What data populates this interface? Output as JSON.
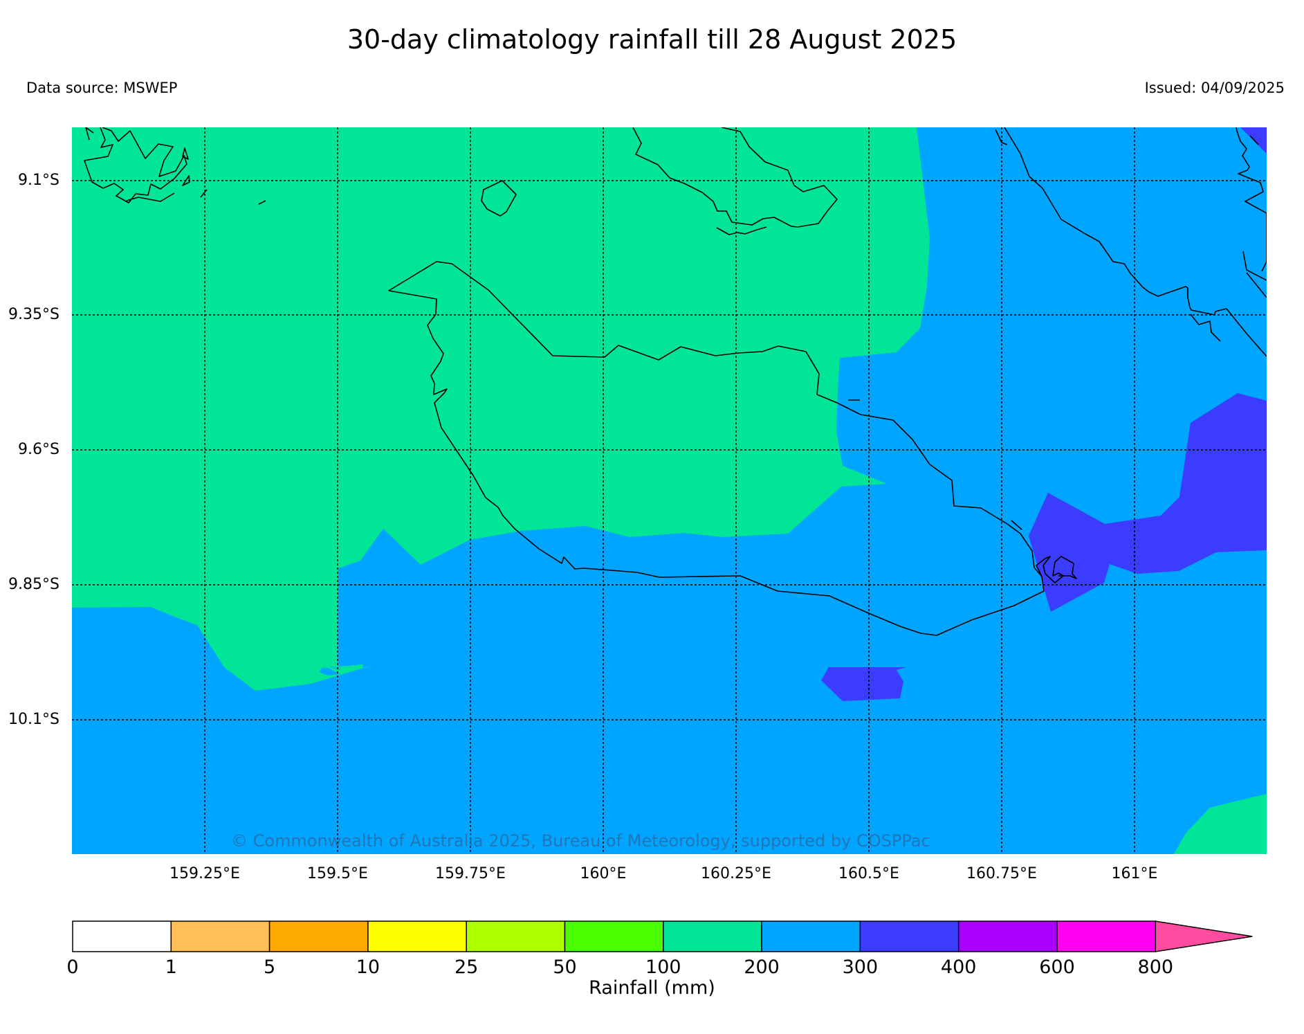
{
  "title": "30-day climatology rainfall till 28 August 2025",
  "data_source": "Data source: MSWEP",
  "issued": "Issued: 04/09/2025",
  "copyright": "© Commonwealth of Australia 2025, Bureau of Meteorology, supported by COSPPac",
  "lat_ticks": [
    "9.1°S",
    "9.35°S",
    "9.6°S",
    "9.85°S",
    "10.1°S"
  ],
  "lon_ticks": [
    "159.25°E",
    "159.5°E",
    "159.75°E",
    "160°E",
    "160.25°E",
    "160.5°E",
    "160.75°E",
    "161°E"
  ],
  "colorbar": {
    "title": "Rainfall (mm)",
    "ticks": [
      "0",
      "1",
      "5",
      "10",
      "25",
      "50",
      "100",
      "200",
      "300",
      "400",
      "600",
      "800"
    ],
    "colors": [
      "#ffffff",
      "#ffbf56",
      "#ffaa00",
      "#ffff00",
      "#b0ff00",
      "#4cff00",
      "#00e696",
      "#00a5ff",
      "#3c3cff",
      "#aa00ff",
      "#ff00f0"
    ],
    "extend_color": "#ff4ca0"
  },
  "map_colors": {
    "band_100_200": "#00e696",
    "band_200_300": "#00a5ff",
    "band_300_400": "#3c3cff"
  }
}
